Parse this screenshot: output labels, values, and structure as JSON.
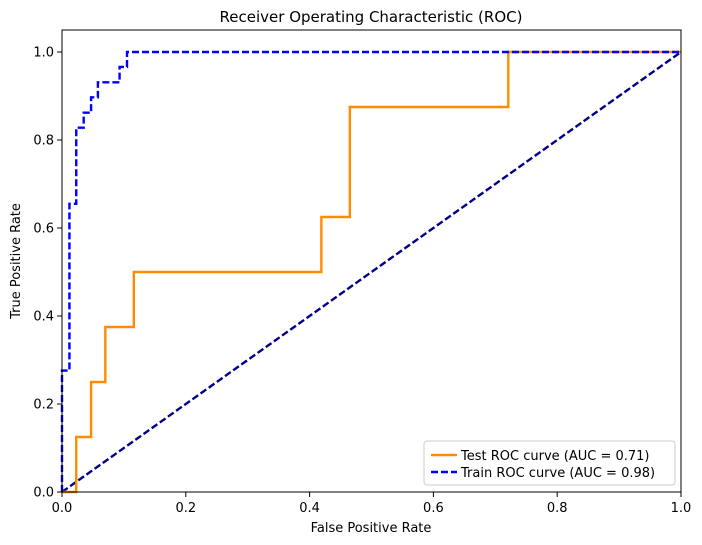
{
  "chart_data": {
    "type": "line",
    "title": "Receiver Operating Characteristic (ROC)",
    "xlabel": "False Positive Rate",
    "ylabel": "True Positive Rate",
    "xlim": [
      0.0,
      1.0
    ],
    "ylim": [
      0.0,
      1.05
    ],
    "x_ticks": [
      "0.0",
      "0.2",
      "0.4",
      "0.6",
      "0.8",
      "1.0"
    ],
    "y_ticks": [
      "0.0",
      "0.2",
      "0.4",
      "0.6",
      "0.8",
      "1.0"
    ],
    "grid": false,
    "legend_position": "lower-right",
    "series": [
      {
        "name": "Test ROC curve (AUC = 0.71)",
        "color": "#ff8c00",
        "style": "solid",
        "x": [
          0.0,
          0.023,
          0.023,
          0.047,
          0.047,
          0.07,
          0.07,
          0.116,
          0.116,
          0.419,
          0.419,
          0.465,
          0.465,
          0.721,
          0.721,
          1.0
        ],
        "y": [
          0.0,
          0.0,
          0.125,
          0.125,
          0.25,
          0.25,
          0.375,
          0.375,
          0.5,
          0.5,
          0.625,
          0.625,
          0.875,
          0.875,
          1.0,
          1.0
        ]
      },
      {
        "name": "Train ROC curve (AUC = 0.98)",
        "color": "#0000ff",
        "style": "dashed",
        "x": [
          0.0,
          0.0,
          0.012,
          0.012,
          0.023,
          0.023,
          0.035,
          0.035,
          0.047,
          0.047,
          0.058,
          0.058,
          0.093,
          0.093,
          0.105,
          0.105,
          1.0
        ],
        "y": [
          0.0,
          0.276,
          0.276,
          0.655,
          0.655,
          0.828,
          0.828,
          0.862,
          0.862,
          0.897,
          0.897,
          0.931,
          0.931,
          0.966,
          0.966,
          1.0,
          1.0
        ]
      },
      {
        "color": "#00008b",
        "style": "dashed",
        "x": [
          0.0,
          1.0
        ],
        "y": [
          0.0,
          1.0
        ]
      }
    ]
  }
}
